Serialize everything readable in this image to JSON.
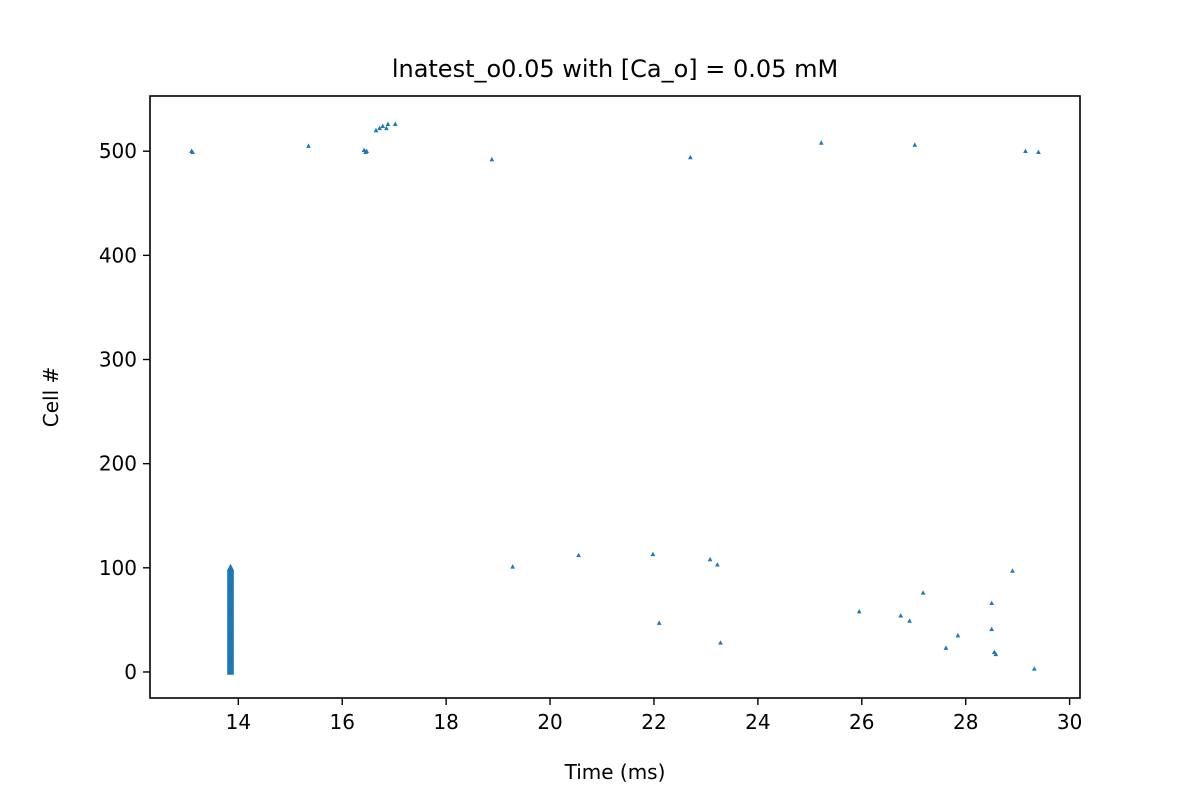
{
  "chart_data": {
    "type": "scatter",
    "title": "lnatest_o0.05 with [Ca_o] = 0.05 mM",
    "xlabel": "Time (ms)",
    "ylabel": "Cell #",
    "xlim": [
      12.3,
      30.2
    ],
    "ylim": [
      -25,
      553
    ],
    "xticks": [
      14,
      16,
      18,
      20,
      22,
      24,
      26,
      28,
      30
    ],
    "yticks": [
      0,
      100,
      200,
      300,
      400,
      500
    ],
    "grid": false,
    "legend": "none",
    "marker": "triangle-up",
    "color": "#1f77b4",
    "burst": {
      "x": 13.85,
      "y_from": 0,
      "y_to": 100
    },
    "points": [
      {
        "x": 13.1,
        "y": 500
      },
      {
        "x": 13.12,
        "y": 499
      },
      {
        "x": 15.35,
        "y": 505
      },
      {
        "x": 16.42,
        "y": 501
      },
      {
        "x": 16.45,
        "y": 499
      },
      {
        "x": 16.47,
        "y": 500
      },
      {
        "x": 16.65,
        "y": 520
      },
      {
        "x": 16.72,
        "y": 522
      },
      {
        "x": 16.78,
        "y": 524
      },
      {
        "x": 16.85,
        "y": 522
      },
      {
        "x": 16.88,
        "y": 526
      },
      {
        "x": 17.02,
        "y": 526
      },
      {
        "x": 18.88,
        "y": 492
      },
      {
        "x": 22.7,
        "y": 494
      },
      {
        "x": 25.22,
        "y": 508
      },
      {
        "x": 27.02,
        "y": 506
      },
      {
        "x": 29.15,
        "y": 500
      },
      {
        "x": 29.4,
        "y": 499
      },
      {
        "x": 19.28,
        "y": 101
      },
      {
        "x": 20.55,
        "y": 112
      },
      {
        "x": 21.98,
        "y": 113
      },
      {
        "x": 22.1,
        "y": 47
      },
      {
        "x": 23.08,
        "y": 108
      },
      {
        "x": 23.22,
        "y": 103
      },
      {
        "x": 23.28,
        "y": 28
      },
      {
        "x": 25.95,
        "y": 58
      },
      {
        "x": 26.75,
        "y": 54
      },
      {
        "x": 26.92,
        "y": 49
      },
      {
        "x": 27.18,
        "y": 76
      },
      {
        "x": 27.62,
        "y": 23
      },
      {
        "x": 27.85,
        "y": 35
      },
      {
        "x": 28.5,
        "y": 66
      },
      {
        "x": 28.5,
        "y": 41
      },
      {
        "x": 28.55,
        "y": 19
      },
      {
        "x": 28.58,
        "y": 17
      },
      {
        "x": 28.9,
        "y": 97
      },
      {
        "x": 29.32,
        "y": 3
      }
    ]
  }
}
